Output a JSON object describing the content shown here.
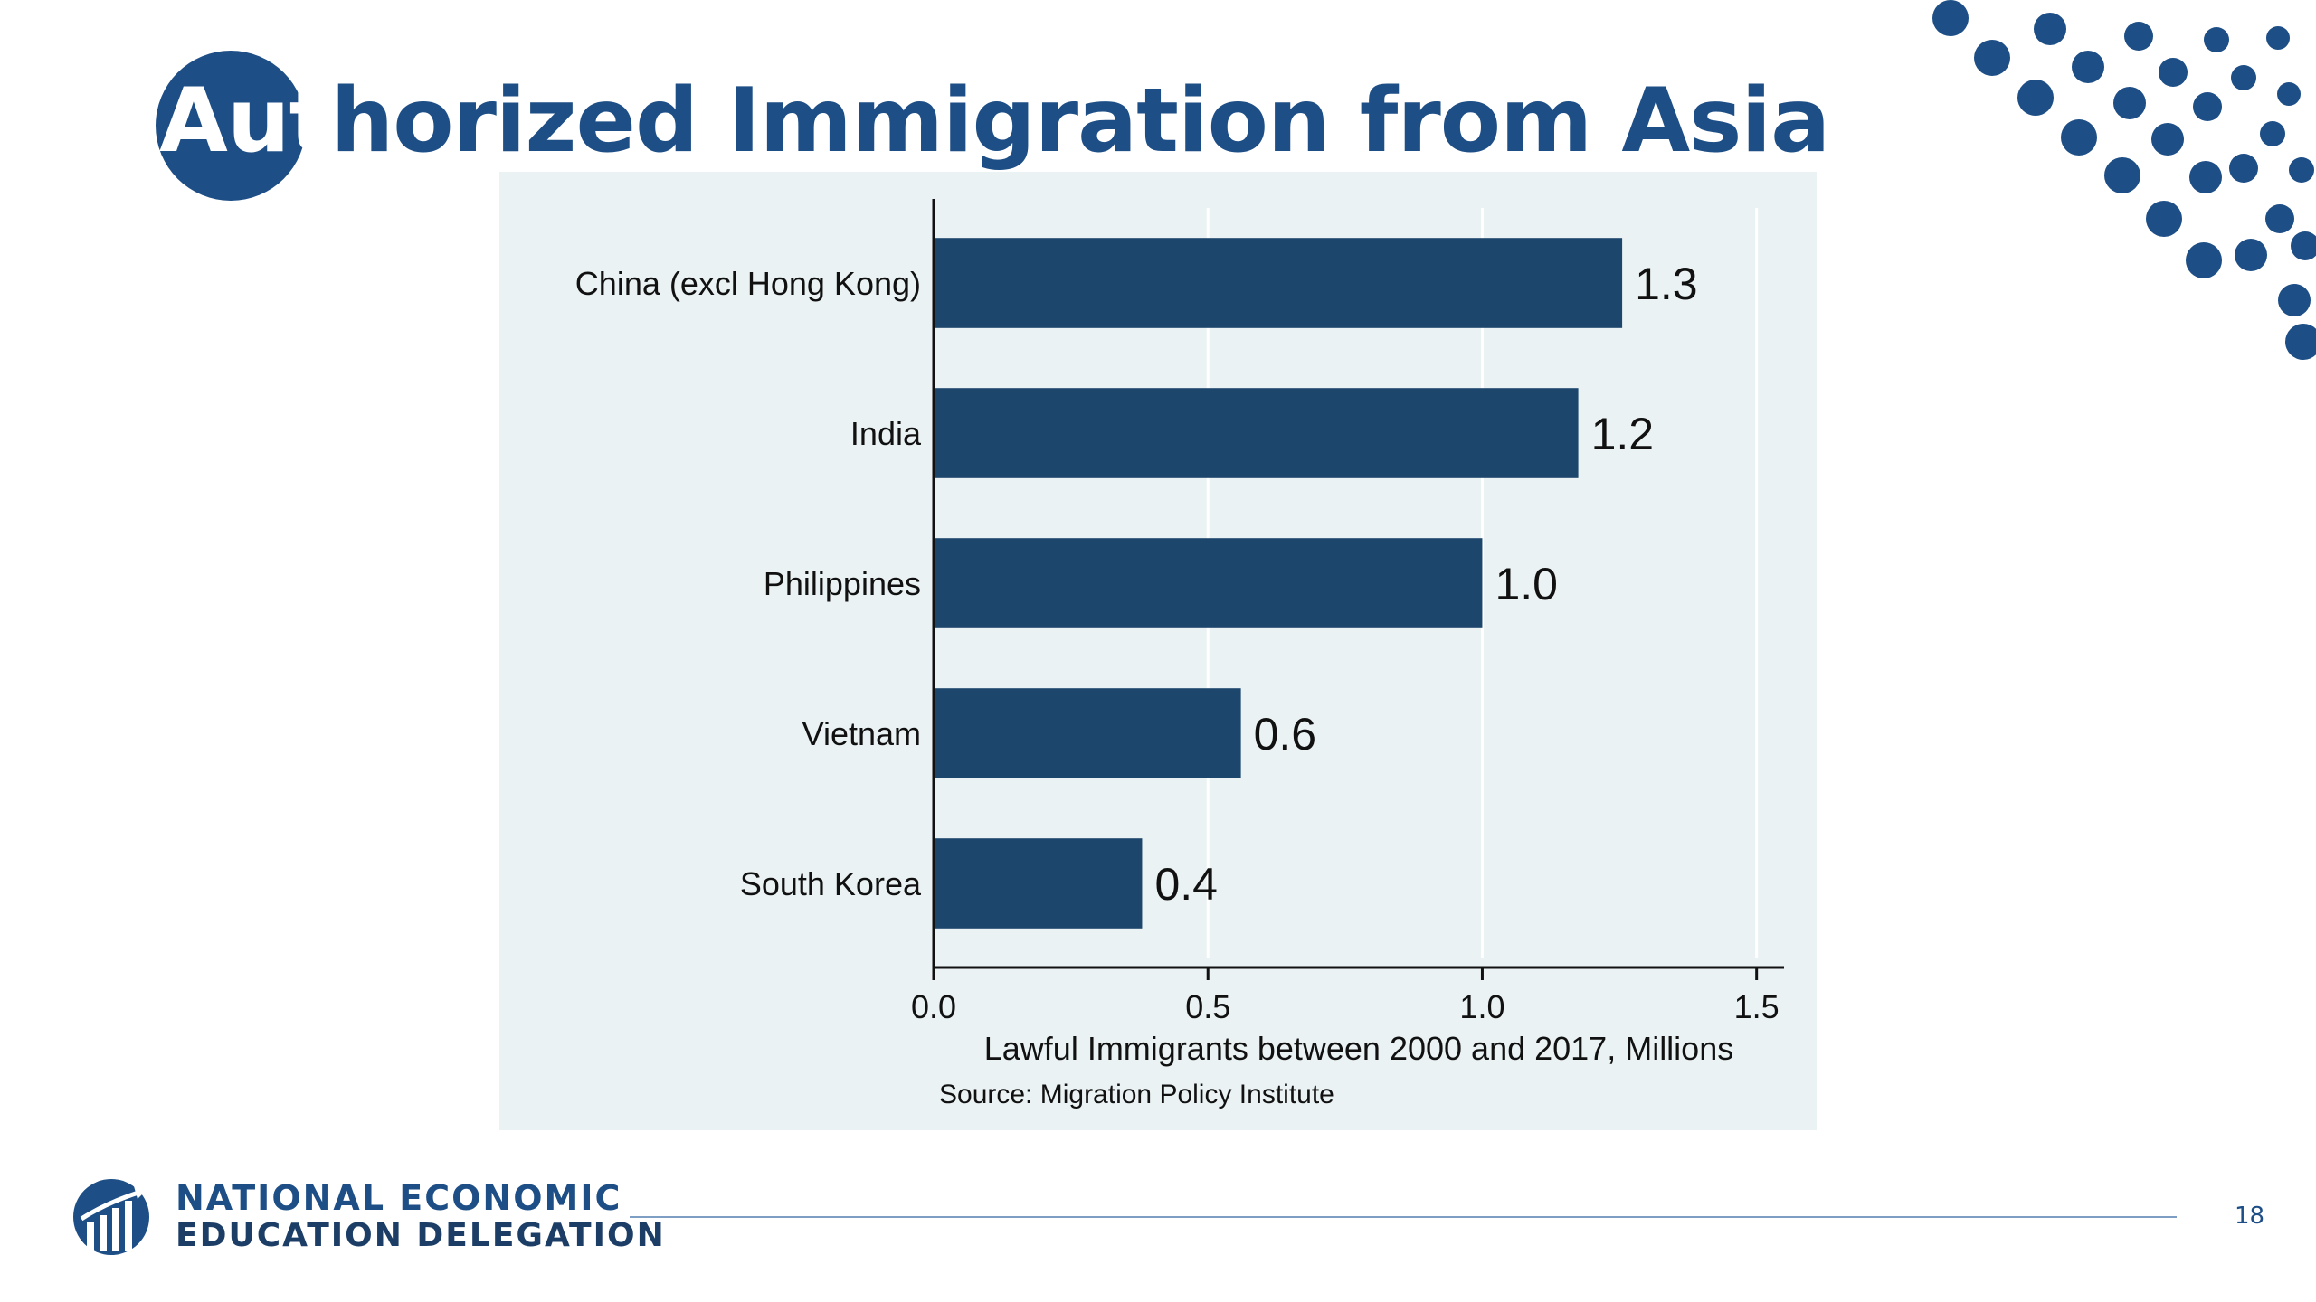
{
  "slide": {
    "title_highlight": "Aut",
    "title_rest": "horized Immigration from Asia",
    "page_number": "18",
    "org_line1": "NATIONAL ECONOMIC",
    "org_line2": "EDUCATION DELEGATION"
  },
  "colors": {
    "brand_blue": "#1d4e86",
    "bar_fill": "#1d466c",
    "panel_bg": "#eaf2f3",
    "gridline": "#ffffff"
  },
  "chart_data": {
    "type": "bar",
    "orientation": "horizontal",
    "categories": [
      "China (excl Hong Kong)",
      "India",
      "Philippines",
      "Vietnam",
      "South Korea"
    ],
    "values": [
      1.255,
      1.175,
      1.0,
      0.56,
      0.38
    ],
    "value_labels": [
      "1.3",
      "1.2",
      "1.0",
      "0.6",
      "0.4"
    ],
    "xlabel": "Lawful Immigrants between 2000 and 2017, Millions",
    "source": "Source: Migration Policy Institute",
    "xlim": [
      0,
      1.55
    ],
    "ticks": [
      0.0,
      0.5,
      1.0,
      1.5
    ],
    "tick_labels": [
      "0.0",
      "0.5",
      "1.0",
      "1.5"
    ],
    "grid": true,
    "legend": "none"
  }
}
